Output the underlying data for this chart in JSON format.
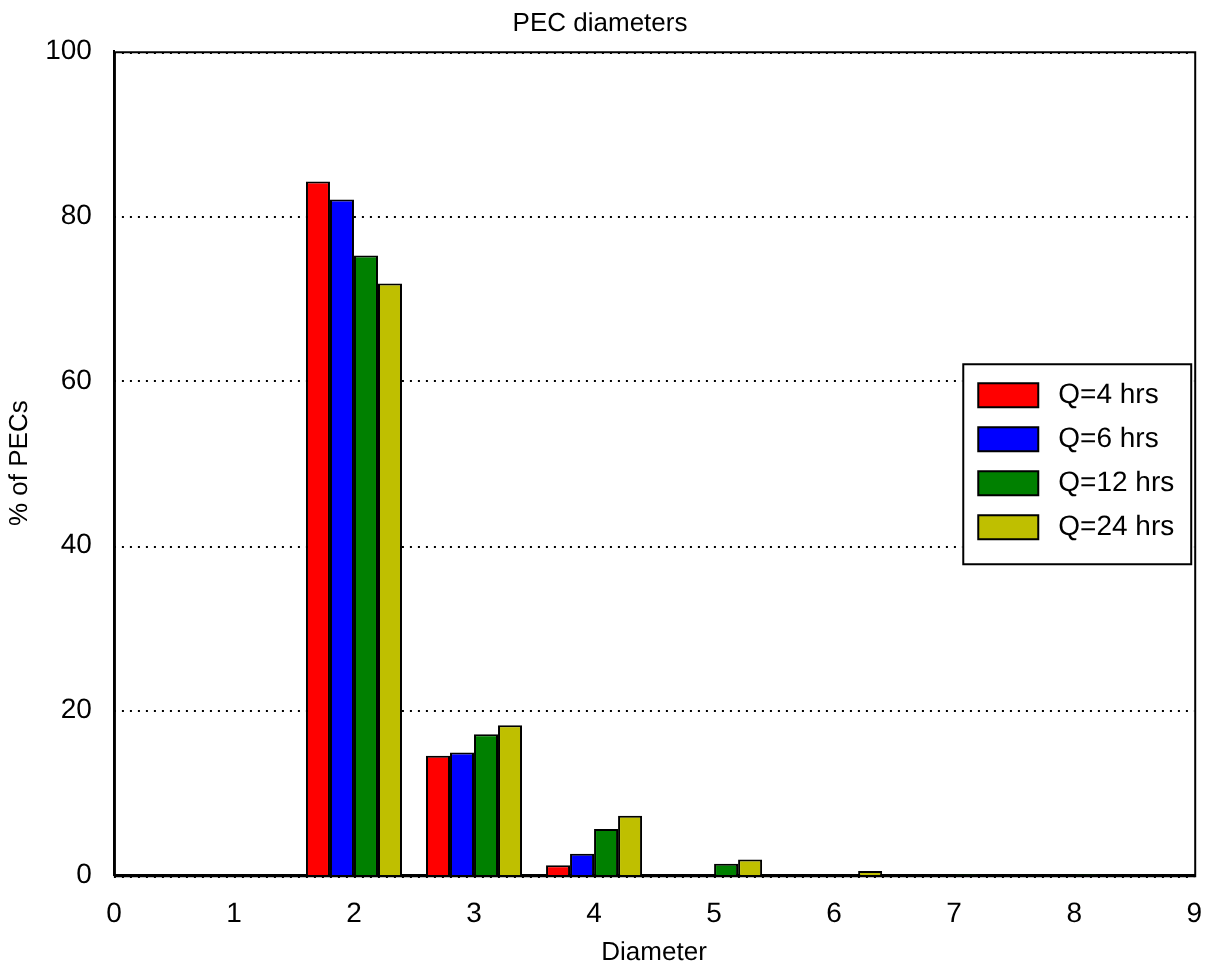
{
  "chart_data": {
    "type": "bar",
    "title": "PEC diameters",
    "xlabel": "Diameter",
    "ylabel": "% of PECs",
    "x": [
      0,
      1,
      2,
      3,
      4,
      5,
      6,
      7,
      8
    ],
    "series": [
      {
        "name": "Q=4 hrs",
        "color": "#ff0000",
        "values": [
          0,
          0,
          84.2,
          14.5,
          1.2,
          0,
          0,
          0,
          0
        ]
      },
      {
        "name": "Q=6 hrs",
        "color": "#0000ff",
        "values": [
          0,
          0,
          82.0,
          14.9,
          2.6,
          null,
          0,
          0,
          0
        ]
      },
      {
        "name": "Q=12 hrs",
        "color": "#008000",
        "values": [
          0,
          0,
          75.2,
          17.1,
          5.6,
          1.4,
          null,
          0.1,
          0.1
        ]
      },
      {
        "name": "Q=24 hrs",
        "color": "#bfbf00",
        "values": [
          0,
          0,
          71.8,
          18.2,
          7.2,
          1.9,
          0.5,
          null,
          null
        ]
      }
    ],
    "xlim": [
      0,
      9
    ],
    "xticks": [
      0,
      1,
      2,
      3,
      4,
      5,
      6,
      7,
      8,
      9
    ],
    "ylim": [
      0,
      100
    ],
    "yticks": [
      0,
      20,
      40,
      60,
      80,
      100
    ],
    "grid": "y",
    "legend": "right"
  }
}
